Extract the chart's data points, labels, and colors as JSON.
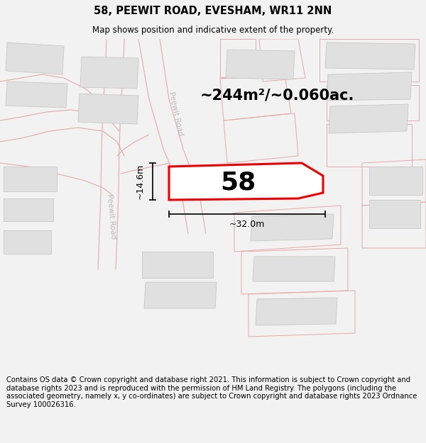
{
  "title": "58, PEEWIT ROAD, EVESHAM, WR11 2NN",
  "subtitle": "Map shows position and indicative extent of the property.",
  "area_text": "~244m²/~0.060ac.",
  "width_label": "~32.0m",
  "height_label": "~14.6m",
  "number_label": "58",
  "footer_text": "Contains OS data © Crown copyright and database right 2021. This information is subject to Crown copyright and database rights 2023 and is reproduced with the permission of HM Land Registry. The polygons (including the associated geometry, namely x, y co-ordinates) are subject to Crown copyright and database rights 2023 Ordnance Survey 100026316.",
  "bg_color": "#f2f2f2",
  "map_bg": "#ffffff",
  "road_line_color": "#e8a8a8",
  "plot_line_color": "#e8a8a8",
  "building_fill": "#e0e0e0",
  "building_edge": "#c8c8c8",
  "highlight_color": "#ee0000",
  "highlight_fill": "#ffffff",
  "dim_line_color": "#111111",
  "road_label_color": "#bbbbbb",
  "title_fontsize": 10.5,
  "subtitle_fontsize": 8.5,
  "area_fontsize": 15,
  "number_fontsize": 26,
  "footer_fontsize": 7.2,
  "road_lw": 0.8,
  "plot_lw": 0.7,
  "highlight_lw": 2.2
}
